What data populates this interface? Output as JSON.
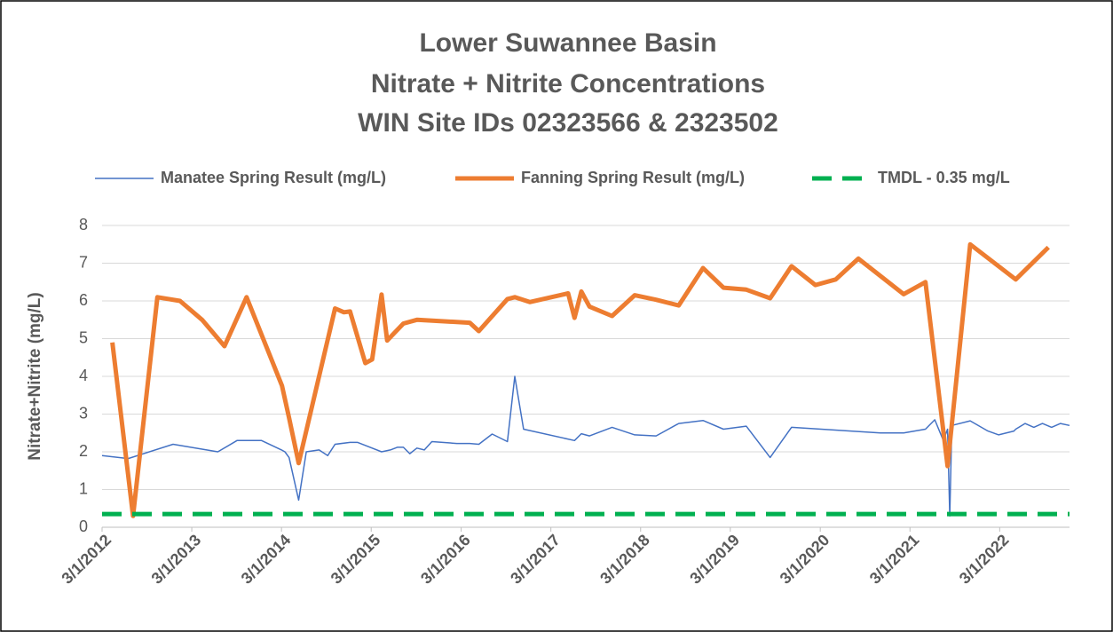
{
  "chart_data": {
    "type": "line",
    "title": [
      "Lower Suwannee Basin",
      "Nitrate + Nitrite Concentrations",
      "WIN Site IDs 02323566 & 2323502"
    ],
    "ylabel": "Nitrate+Nitrite (mg/L)",
    "ylim": [
      0,
      8
    ],
    "yticks": [
      0,
      1,
      2,
      3,
      4,
      5,
      6,
      7,
      8
    ],
    "grid": true,
    "legend": "top",
    "xlim": [
      "2012-03-01",
      "2022-12-10"
    ],
    "xticks": [
      {
        "value": "2012-03-01",
        "label": "3/1/2012"
      },
      {
        "value": "2013-03-01",
        "label": "3/1/2013"
      },
      {
        "value": "2014-03-01",
        "label": "3/1/2014"
      },
      {
        "value": "2015-03-01",
        "label": "3/1/2015"
      },
      {
        "value": "2016-03-01",
        "label": "3/1/2016"
      },
      {
        "value": "2017-03-01",
        "label": "3/1/2017"
      },
      {
        "value": "2018-03-01",
        "label": "3/1/2018"
      },
      {
        "value": "2019-03-01",
        "label": "3/1/2019"
      },
      {
        "value": "2020-03-01",
        "label": "3/1/2020"
      },
      {
        "value": "2021-03-01",
        "label": "3/1/2021"
      },
      {
        "value": "2022-03-01",
        "label": "3/1/2022"
      }
    ],
    "series": [
      {
        "name": "Manatee Spring Result (mg/L)",
        "color": "#4472c4",
        "width": 1.5,
        "x": [
          "2012-03-01",
          "2012-06-15",
          "2012-12-15",
          "2013-06-15",
          "2013-09-01",
          "2013-12-10",
          "2014-03-01",
          "2014-03-15",
          "2014-04-01",
          "2014-05-10",
          "2014-06-10",
          "2014-08-01",
          "2014-09-05",
          "2014-10-05",
          "2014-12-05",
          "2015-01-05",
          "2015-04-12",
          "2015-05-18",
          "2015-06-15",
          "2015-07-10",
          "2015-08-05",
          "2015-09-03",
          "2015-10-03",
          "2015-11-03",
          "2016-02-12",
          "2016-04-05",
          "2016-05-12",
          "2016-07-05",
          "2016-09-05",
          "2016-10-05",
          "2016-11-10",
          "2017-06-05",
          "2017-07-03",
          "2017-08-05",
          "2017-11-05",
          "2018-02-05",
          "2018-05-03",
          "2018-08-03",
          "2018-11-10",
          "2019-02-01",
          "2019-05-05",
          "2019-08-10",
          "2019-11-05",
          "2020-11-01",
          "2021-02-03",
          "2021-05-03",
          "2021-06-10",
          "2021-07-15",
          "2021-08-01",
          "2021-08-10",
          "2021-08-18",
          "2021-11-01",
          "2022-01-12",
          "2022-02-25",
          "2022-04-28",
          "2022-05-05",
          "2022-06-12",
          "2022-07-18",
          "2022-08-22",
          "2022-09-28",
          "2022-11-03",
          "2022-12-10"
        ],
        "values": [
          1.9,
          1.82,
          2.2,
          2.0,
          2.3,
          2.3,
          2.05,
          2.0,
          1.85,
          0.72,
          2.0,
          2.05,
          1.9,
          2.2,
          2.25,
          2.25,
          2.0,
          2.05,
          2.12,
          2.12,
          1.95,
          2.1,
          2.05,
          2.27,
          2.22,
          2.22,
          2.2,
          2.47,
          2.27,
          4.0,
          2.6,
          2.3,
          2.48,
          2.42,
          2.65,
          2.45,
          2.42,
          2.75,
          2.83,
          2.6,
          2.68,
          1.85,
          2.65,
          2.5,
          2.5,
          2.6,
          2.85,
          2.3,
          2.6,
          0.3,
          2.7,
          2.82,
          2.55,
          2.45,
          2.55,
          2.6,
          2.75,
          2.65,
          2.75,
          2.65,
          2.75,
          2.7
        ]
      },
      {
        "name": "Fanning Spring Result (mg/L)",
        "color": "#ed7d31",
        "width": 5,
        "x": [
          "2012-04-12",
          "2012-07-05",
          "2012-10-12",
          "2013-01-12",
          "2013-04-12",
          "2013-07-12",
          "2013-10-10",
          "2014-03-03",
          "2014-04-01",
          "2014-05-10",
          "2014-10-05",
          "2014-11-10",
          "2014-12-05",
          "2015-02-05",
          "2015-03-05",
          "2015-04-12",
          "2015-05-05",
          "2015-07-10",
          "2015-09-03",
          "2016-04-05",
          "2016-05-12",
          "2016-09-05",
          "2016-10-05",
          "2016-12-05",
          "2017-05-10",
          "2017-06-05",
          "2017-07-03",
          "2017-08-05",
          "2017-11-05",
          "2018-02-05",
          "2018-05-03",
          "2018-08-03",
          "2018-11-10",
          "2019-02-01",
          "2019-05-05",
          "2019-08-10",
          "2019-11-05",
          "2020-02-10",
          "2020-05-03",
          "2020-08-03",
          "2021-02-03",
          "2021-05-03",
          "2021-08-01",
          "2021-11-01",
          "2022-05-05",
          "2022-09-15"
        ],
        "values": [
          4.9,
          0.3,
          6.1,
          6.0,
          5.5,
          4.8,
          6.1,
          3.75,
          2.9,
          1.7,
          5.8,
          5.7,
          5.72,
          4.35,
          4.45,
          6.17,
          4.95,
          5.4,
          5.5,
          5.42,
          5.2,
          6.05,
          6.1,
          5.97,
          6.2,
          5.55,
          6.25,
          5.85,
          5.6,
          6.15,
          6.03,
          5.88,
          6.87,
          6.35,
          6.3,
          6.07,
          6.92,
          6.42,
          6.57,
          7.12,
          6.18,
          6.5,
          1.62,
          7.5,
          6.57,
          7.42
        ]
      },
      {
        "name": "TMDL - 0.35 mg/L",
        "color": "#00b050",
        "width": 5,
        "dashed": true,
        "x": [
          "2012-03-01",
          "2022-12-10"
        ],
        "values": [
          0.35,
          0.35
        ]
      }
    ]
  }
}
